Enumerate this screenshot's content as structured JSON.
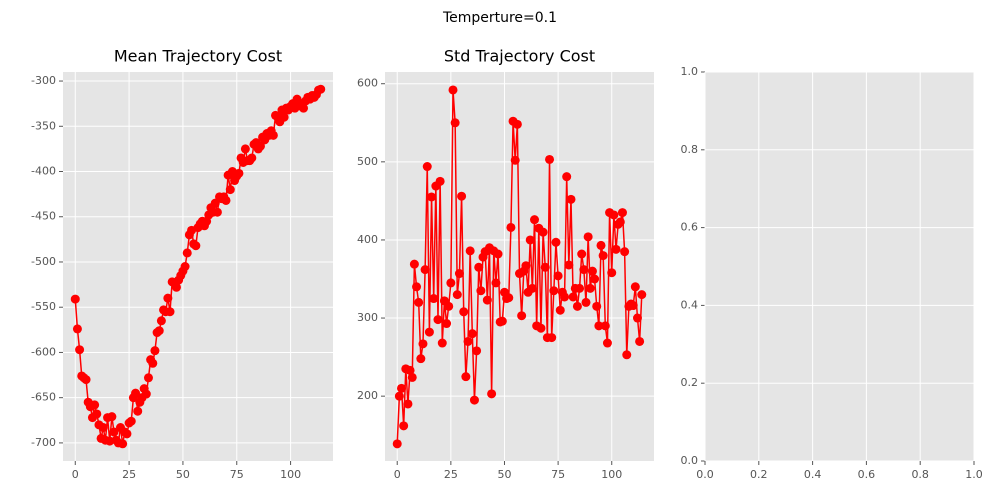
{
  "title": "Temperture=0.1",
  "chart_data": [
    {
      "type": "line",
      "title": "Mean Trajectory Cost",
      "grid": true,
      "x": [
        0,
        1,
        2,
        3,
        4,
        5,
        6,
        7,
        8,
        9,
        10,
        11,
        12,
        13,
        14,
        15,
        16,
        17,
        18,
        19,
        20,
        21,
        22,
        23,
        24,
        25,
        26,
        27,
        28,
        29,
        30,
        31,
        32,
        33,
        34,
        35,
        36,
        37,
        38,
        39,
        40,
        41,
        42,
        43,
        44,
        45,
        46,
        47,
        48,
        49,
        50,
        51,
        52,
        53,
        54,
        55,
        56,
        57,
        58,
        59,
        60,
        61,
        62,
        63,
        64,
        65,
        66,
        67,
        68,
        69,
        70,
        71,
        72,
        73,
        74,
        75,
        76,
        77,
        78,
        79,
        80,
        81,
        82,
        83,
        84,
        85,
        86,
        87,
        88,
        89,
        90,
        91,
        92,
        93,
        94,
        95,
        96,
        97,
        98,
        99,
        100,
        101,
        102,
        103,
        104,
        105,
        106,
        107,
        108,
        109,
        110,
        111,
        112,
        113,
        114
      ],
      "series": [
        {
          "color": "#ff0000",
          "values": [
            -541,
            -574,
            -597,
            -626,
            -628,
            -630,
            -655,
            -660,
            -672,
            -658,
            -668,
            -680,
            -695,
            -683,
            -697,
            -672,
            -698,
            -671,
            -688,
            -697,
            -700,
            -683,
            -701,
            -688,
            -690,
            -678,
            -676,
            -650,
            -645,
            -665,
            -655,
            -650,
            -640,
            -646,
            -628,
            -608,
            -612,
            -598,
            -578,
            -576,
            -565,
            -553,
            -555,
            -540,
            -555,
            -522,
            -523,
            -528,
            -520,
            -515,
            -510,
            -505,
            -490,
            -470,
            -465,
            -480,
            -482,
            -462,
            -458,
            -455,
            -460,
            -455,
            -448,
            -440,
            -445,
            -435,
            -445,
            -428,
            -430,
            -428,
            -432,
            -404,
            -420,
            -400,
            -410,
            -405,
            -402,
            -385,
            -390,
            -375,
            -388,
            -388,
            -385,
            -370,
            -368,
            -375,
            -372,
            -362,
            -365,
            -358,
            -360,
            -355,
            -360,
            -338,
            -340,
            -345,
            -332,
            -340,
            -330,
            -332,
            -328,
            -325,
            -330,
            -320,
            -325,
            -328,
            -330,
            -322,
            -318,
            -320,
            -316,
            -318,
            -315,
            -310,
            -309
          ]
        }
      ],
      "xlim": [
        -5.7,
        119.7
      ],
      "xticks": [
        0,
        25,
        50,
        75,
        100
      ],
      "ylim": [
        -720,
        -290
      ],
      "yticks": [
        -700,
        -650,
        -600,
        -550,
        -500,
        -450,
        -400,
        -350,
        -300
      ]
    },
    {
      "type": "line",
      "title": "Std Trajectory Cost",
      "grid": true,
      "x": [
        0,
        1,
        2,
        3,
        4,
        5,
        6,
        7,
        8,
        9,
        10,
        11,
        12,
        13,
        14,
        15,
        16,
        17,
        18,
        19,
        20,
        21,
        22,
        23,
        24,
        25,
        26,
        27,
        28,
        29,
        30,
        31,
        32,
        33,
        34,
        35,
        36,
        37,
        38,
        39,
        40,
        41,
        42,
        43,
        44,
        45,
        46,
        47,
        48,
        49,
        50,
        51,
        52,
        53,
        54,
        55,
        56,
        57,
        58,
        59,
        60,
        61,
        62,
        63,
        64,
        65,
        66,
        67,
        68,
        69,
        70,
        71,
        72,
        73,
        74,
        75,
        76,
        77,
        78,
        79,
        80,
        81,
        82,
        83,
        84,
        85,
        86,
        87,
        88,
        89,
        90,
        91,
        92,
        93,
        94,
        95,
        96,
        97,
        98,
        99,
        100,
        101,
        102,
        103,
        104,
        105,
        106,
        107,
        108,
        109,
        110,
        111,
        112,
        113,
        114
      ],
      "series": [
        {
          "color": "#ff0000",
          "values": [
            139,
            200,
            210,
            162,
            235,
            190,
            233,
            224,
            369,
            340,
            320,
            248,
            267,
            362,
            494,
            282,
            455,
            325,
            469,
            298,
            475,
            268,
            322,
            293,
            315,
            345,
            592,
            550,
            330,
            357,
            456,
            308,
            225,
            270,
            386,
            280,
            195,
            258,
            365,
            335,
            378,
            385,
            323,
            390,
            203,
            386,
            345,
            382,
            295,
            296,
            333,
            325,
            326,
            416,
            552,
            502,
            548,
            357,
            303,
            360,
            367,
            333,
            400,
            338,
            426,
            290,
            415,
            287,
            410,
            365,
            275,
            503,
            275,
            335,
            397,
            354,
            310,
            333,
            327,
            481,
            368,
            452,
            327,
            338,
            315,
            338,
            382,
            362,
            320,
            404,
            338,
            360,
            350,
            315,
            290,
            393,
            380,
            290,
            268,
            435,
            358,
            432,
            388,
            420,
            423,
            435,
            385,
            253,
            315,
            318,
            316,
            340,
            300,
            270,
            330
          ]
        }
      ],
      "xlim": [
        -5.7,
        119.7
      ],
      "xticks": [
        0,
        25,
        50,
        75,
        100
      ],
      "ylim": [
        117,
        615
      ],
      "yticks": [
        200,
        300,
        400,
        500,
        600
      ]
    },
    {
      "type": "line",
      "grid": true,
      "series": [],
      "xlim": [
        0,
        1
      ],
      "xticks": [
        {
          "value": 0,
          "label": "0.0"
        },
        {
          "value": 0.2,
          "label": "0.2"
        },
        {
          "value": 0.4,
          "label": "0.4"
        },
        {
          "value": 0.6,
          "label": "0.6"
        },
        {
          "value": 0.8,
          "label": "0.8"
        },
        {
          "value": 1,
          "label": "1.0"
        }
      ],
      "ylim": [
        0,
        1
      ],
      "yticks": [
        {
          "value": 0,
          "label": "0.0"
        },
        {
          "value": 0.2,
          "label": "0.2"
        },
        {
          "value": 0.4,
          "label": "0.4"
        },
        {
          "value": 0.6,
          "label": "0.6"
        },
        {
          "value": 0.8,
          "label": "0.8"
        },
        {
          "value": 1,
          "label": "1.0"
        }
      ]
    }
  ]
}
